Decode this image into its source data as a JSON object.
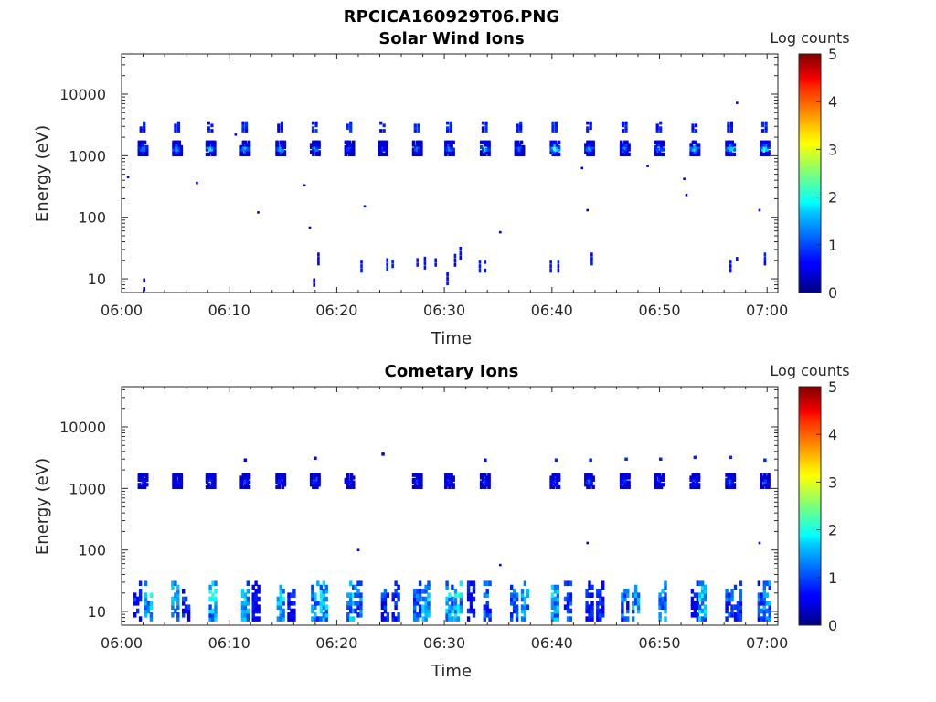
{
  "figure": {
    "title": "RPCICA160929T06.PNG"
  },
  "colors": {
    "colormap": "jet",
    "axis": "#262626",
    "background": "#ffffff"
  },
  "chart_data": [
    {
      "type": "heatmap",
      "title": "Solar Wind Ions",
      "xlabel": "Time",
      "ylabel": "Energy (eV)",
      "x_range": [
        "06:00",
        "07:01"
      ],
      "y_scale": "log",
      "ylim": [
        6,
        45000
      ],
      "x_ticks": [
        "06:00",
        "06:10",
        "06:20",
        "06:30",
        "06:40",
        "06:50",
        "07:00"
      ],
      "y_ticks": [
        "10",
        "100",
        "1000",
        "10000"
      ],
      "colorbar": {
        "label": "Log counts",
        "min": 0,
        "max": 5,
        "ticks": [
          "0",
          "1",
          "2",
          "3",
          "4",
          "5"
        ]
      },
      "grid": false,
      "band_times_min": [
        2,
        5.2,
        8.3,
        11.5,
        14.8,
        18,
        21.2,
        24.3,
        27.5,
        30.5,
        33.8,
        37,
        40.3,
        43.5,
        46.8,
        50,
        53.3,
        56.6,
        59.8
      ],
      "band_peaks_log": [
        1.5,
        1.7,
        1.9,
        1.8,
        1.6,
        1.6,
        1.1,
        0.9,
        1.3,
        1.5,
        1.9,
        1.3,
        2.6,
        1.8,
        1.4,
        1.6,
        2.1,
        2.1,
        2.2
      ],
      "scattered_points": [
        {
          "t": 0.6,
          "e": 450,
          "v": 0.6
        },
        {
          "t": 7,
          "e": 360,
          "v": 0.5
        },
        {
          "t": 12.7,
          "e": 120,
          "v": 0.6
        },
        {
          "t": 17,
          "e": 330,
          "v": 0.5
        },
        {
          "t": 17.5,
          "e": 68,
          "v": 0.4
        },
        {
          "t": 22.6,
          "e": 150,
          "v": 0.5
        },
        {
          "t": 35.2,
          "e": 57,
          "v": 0.6
        },
        {
          "t": 42.8,
          "e": 630,
          "v": 0.5
        },
        {
          "t": 43.3,
          "e": 130,
          "v": 0.6
        },
        {
          "t": 48.9,
          "e": 680,
          "v": 0.6
        },
        {
          "t": 52.3,
          "e": 420,
          "v": 0.5
        },
        {
          "t": 52.5,
          "e": 230,
          "v": 0.6
        },
        {
          "t": 57.2,
          "e": 7200,
          "v": 0.6
        },
        {
          "t": 59.3,
          "e": 130,
          "v": 0.6
        },
        {
          "t": 10.6,
          "e": 2200,
          "v": 0.7
        }
      ],
      "low_energy_streaks": [
        {
          "t": 2.1,
          "e": 8,
          "v": 0.4
        },
        {
          "t": 17.9,
          "e": 8,
          "v": 0.4
        },
        {
          "t": 18.3,
          "e": 21,
          "v": 0.5
        },
        {
          "t": 22.3,
          "e": 16,
          "v": 0.6
        },
        {
          "t": 24.7,
          "e": 17,
          "v": 0.6
        },
        {
          "t": 25.2,
          "e": 19,
          "v": 0.6
        },
        {
          "t": 27.5,
          "e": 17,
          "v": 0.6
        },
        {
          "t": 28.2,
          "e": 18,
          "v": 0.6
        },
        {
          "t": 29.2,
          "e": 20,
          "v": 0.6
        },
        {
          "t": 30.3,
          "e": 10,
          "v": 0.5
        },
        {
          "t": 31,
          "e": 20,
          "v": 0.6
        },
        {
          "t": 31.5,
          "e": 26,
          "v": 0.6
        },
        {
          "t": 33.3,
          "e": 16,
          "v": 0.6
        },
        {
          "t": 33.8,
          "e": 16,
          "v": 0.6
        },
        {
          "t": 39.9,
          "e": 16,
          "v": 0.6
        },
        {
          "t": 40.6,
          "e": 16,
          "v": 0.6
        },
        {
          "t": 43.7,
          "e": 21,
          "v": 0.6
        },
        {
          "t": 56.6,
          "e": 16,
          "v": 0.6
        },
        {
          "t": 57.2,
          "e": 21,
          "v": 0.6
        },
        {
          "t": 59.8,
          "e": 21,
          "v": 0.6
        }
      ]
    },
    {
      "type": "heatmap",
      "title": "Cometary Ions",
      "xlabel": "Time",
      "ylabel": "Energy (eV)",
      "x_range": [
        "06:00",
        "07:01"
      ],
      "y_scale": "log",
      "ylim": [
        6,
        45000
      ],
      "x_ticks": [
        "06:00",
        "06:10",
        "06:20",
        "06:30",
        "06:40",
        "06:50",
        "07:00"
      ],
      "y_ticks": [
        "10",
        "100",
        "1000",
        "10000"
      ],
      "colorbar": {
        "label": "Log counts",
        "min": 0,
        "max": 5,
        "ticks": [
          "0",
          "1",
          "2",
          "3",
          "4",
          "5"
        ]
      },
      "grid": false,
      "band_times_min": [
        2,
        5.2,
        8.3,
        11.5,
        14.8,
        18,
        21.2,
        27.5,
        30.5,
        33.8,
        40.3,
        43.5,
        46.8,
        50,
        53.3,
        56.6,
        59.8
      ],
      "band_peaks_log": [
        1.0,
        0.9,
        1.0,
        1.1,
        1.0,
        1.1,
        0.9,
        1.0,
        0.8,
        1.0,
        1.1,
        1.3,
        1.1,
        1.0,
        1.1,
        1.3,
        1.2
      ],
      "high_peaks": [
        {
          "t": 11.5,
          "e": 2900,
          "v": 0.6
        },
        {
          "t": 18,
          "e": 3100,
          "v": 0.6
        },
        {
          "t": 24.3,
          "e": 3600,
          "v": 0.5
        },
        {
          "t": 33.8,
          "e": 2900,
          "v": 0.7
        },
        {
          "t": 40.4,
          "e": 2900,
          "v": 0.8
        },
        {
          "t": 43.6,
          "e": 2900,
          "v": 0.8
        },
        {
          "t": 46.9,
          "e": 3000,
          "v": 0.8
        },
        {
          "t": 50.1,
          "e": 3000,
          "v": 0.8
        },
        {
          "t": 53.3,
          "e": 3200,
          "v": 0.8
        },
        {
          "t": 56.6,
          "e": 3200,
          "v": 0.8
        },
        {
          "t": 59.8,
          "e": 2900,
          "v": 0.8
        }
      ],
      "scattered_points": [
        {
          "t": 22,
          "e": 100,
          "v": 0.6
        },
        {
          "t": 35.2,
          "e": 57,
          "v": 0.6
        },
        {
          "t": 43.3,
          "e": 130,
          "v": 0.6
        },
        {
          "t": 59.3,
          "e": 130,
          "v": 0.6
        }
      ],
      "low_energy_bursts_min": [
        1.5,
        2.5,
        5,
        6,
        8.5,
        11.5,
        12.5,
        14.8,
        15.8,
        18,
        18.8,
        21.3,
        22,
        24.5,
        25.5,
        27.5,
        28.3,
        30.5,
        31.3,
        32.5,
        34,
        36.5,
        37.5,
        40.3,
        41.5,
        43.5,
        44.5,
        46.8,
        47.8,
        50.3,
        53.3,
        54,
        56.5,
        57.3,
        59.5,
        60
      ]
    }
  ]
}
